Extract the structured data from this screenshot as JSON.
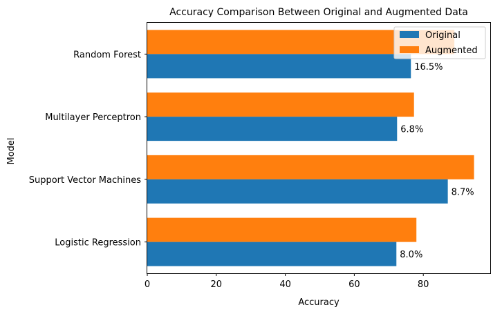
{
  "chart_data": {
    "type": "bar",
    "orientation": "horizontal",
    "title": "Accuracy Comparison Between Original and Augmented Data",
    "xlabel": "Accuracy",
    "ylabel": "Model",
    "categories": [
      "Logistic Regression",
      "Support Vector Machines",
      "Multilayer Perceptron",
      "Random Forest"
    ],
    "series": [
      {
        "name": "Original",
        "values": [
          72.2,
          87.1,
          72.4,
          76.4
        ],
        "color": "#1f77b4"
      },
      {
        "name": "Augmented",
        "values": [
          78.0,
          94.7,
          77.3,
          89.0
        ],
        "color": "#ff7f0e"
      }
    ],
    "data_labels": [
      "8.0%",
      "8.7%",
      "6.8%",
      "16.5%"
    ],
    "xticks": [
      0,
      20,
      40,
      60,
      80
    ],
    "xlim": [
      0,
      99.4
    ],
    "grid": false,
    "legend_position": "top-right"
  }
}
